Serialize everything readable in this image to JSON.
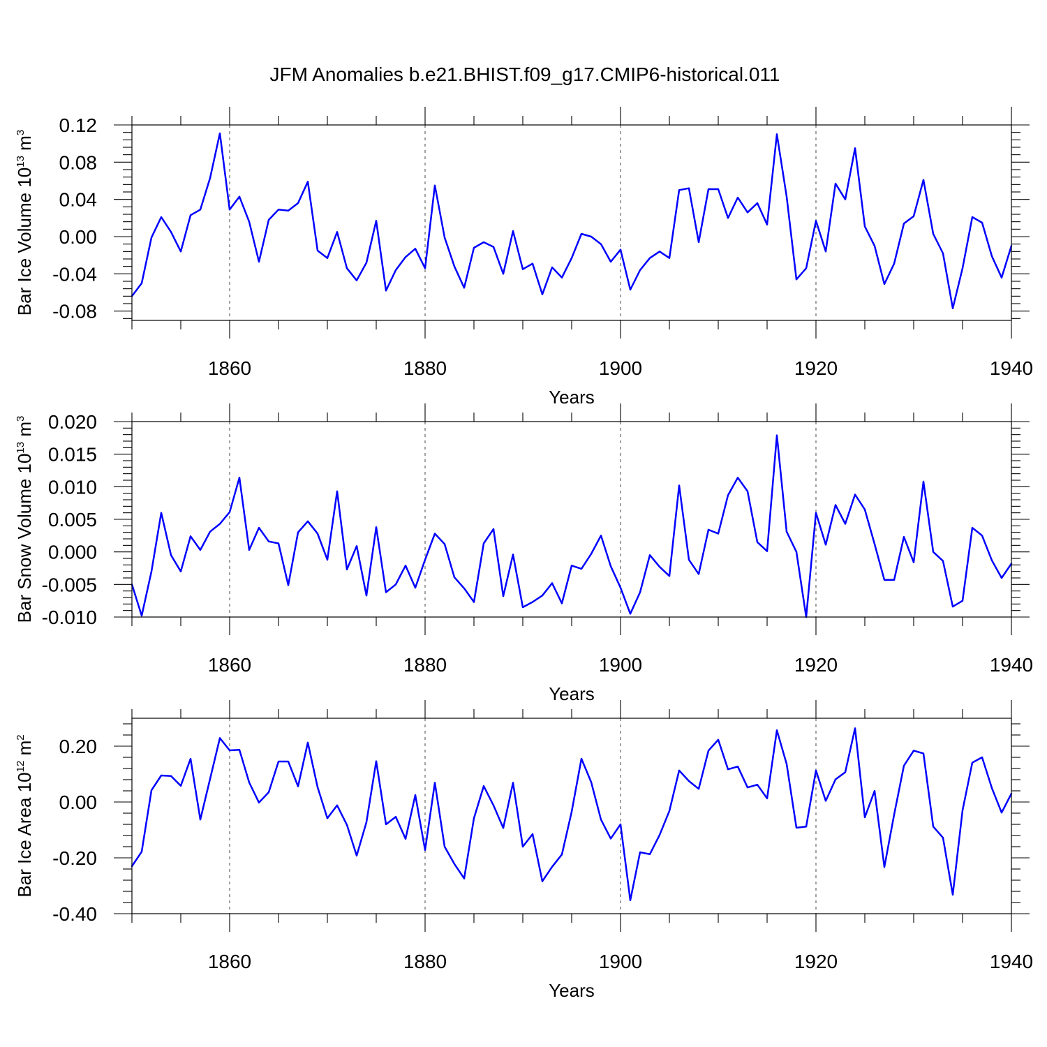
{
  "title": "JFM Anomalies b.e21.BHIST.f09_g17.CMIP6-historical.011",
  "colors": {
    "line": "#0000ff",
    "axis": "#000000",
    "grid": "#444444"
  },
  "chart_data": [
    {
      "type": "line",
      "ylabel": {
        "text": "Bar Ice Volume 10",
        "sup1": "13",
        "unit": " m",
        "sup2": "3"
      },
      "xlabel": "Years",
      "xlim": [
        1850,
        1940
      ],
      "ylim": [
        -0.09,
        0.12
      ],
      "xticks": [
        1860,
        1880,
        1900,
        1920,
        1940
      ],
      "yticks": [
        -0.08,
        -0.04,
        0.0,
        0.04,
        0.08,
        0.12
      ],
      "ytick_labels": [
        "-0.08",
        "-0.04",
        "0.00",
        "0.04",
        "0.08",
        "0.12"
      ],
      "x_start": 1850,
      "values": [
        -0.064,
        -0.05,
        -0.001,
        0.021,
        0.005,
        -0.016,
        0.023,
        0.029,
        0.063,
        0.111,
        0.029,
        0.043,
        0.016,
        -0.027,
        0.018,
        0.029,
        0.028,
        0.036,
        0.059,
        -0.015,
        -0.023,
        0.005,
        -0.034,
        -0.047,
        -0.028,
        0.017,
        -0.058,
        -0.036,
        -0.022,
        -0.013,
        -0.034,
        0.055,
        -0.001,
        -0.032,
        -0.055,
        -0.012,
        -0.006,
        -0.011,
        -0.04,
        0.006,
        -0.035,
        -0.029,
        -0.062,
        -0.033,
        -0.044,
        -0.023,
        0.003,
        0.0,
        -0.008,
        -0.027,
        -0.014,
        -0.057,
        -0.036,
        -0.023,
        -0.016,
        -0.023,
        0.05,
        0.052,
        -0.006,
        0.051,
        0.051,
        0.02,
        0.042,
        0.026,
        0.036,
        0.013,
        0.11,
        0.043,
        -0.046,
        -0.034,
        0.017,
        -0.016,
        0.057,
        0.04,
        0.095,
        0.011,
        -0.01,
        -0.051,
        -0.029,
        0.014,
        0.022,
        0.061,
        0.003,
        -0.018,
        -0.077,
        -0.034,
        0.021,
        0.015,
        -0.021,
        -0.044,
        -0.01
      ]
    },
    {
      "type": "line",
      "ylabel": {
        "text": "Bar Snow Volume 10",
        "sup1": "13",
        "unit": " m",
        "sup2": "3"
      },
      "xlabel": "Years",
      "xlim": [
        1850,
        1940
      ],
      "ylim": [
        -0.01,
        0.02
      ],
      "xticks": [
        1860,
        1880,
        1900,
        1920,
        1940
      ],
      "yticks": [
        -0.01,
        -0.005,
        0.0,
        0.005,
        0.01,
        0.015,
        0.02
      ],
      "ytick_labels": [
        "-0.010",
        "-0.005",
        "0.000",
        "0.005",
        "0.010",
        "0.015",
        "0.020"
      ],
      "x_start": 1850,
      "values": [
        -0.005,
        -0.0098,
        -0.003,
        0.006,
        -0.0005,
        -0.003,
        0.0024,
        0.0003,
        0.0031,
        0.0043,
        0.0061,
        0.0114,
        0.0003,
        0.0037,
        0.0016,
        0.0013,
        -0.0051,
        0.003,
        0.0047,
        0.0028,
        -0.0012,
        0.0093,
        -0.0027,
        0.0009,
        -0.0067,
        0.0038,
        -0.0062,
        -0.005,
        -0.0021,
        -0.0055,
        -0.0012,
        0.0028,
        0.0012,
        -0.0039,
        -0.0056,
        -0.0077,
        0.0013,
        0.0035,
        -0.0068,
        -0.0004,
        -0.0085,
        -0.0077,
        -0.0067,
        -0.0048,
        -0.0079,
        -0.0021,
        -0.0026,
        -0.0003,
        0.0025,
        -0.0022,
        -0.0055,
        -0.0095,
        -0.0062,
        -0.0005,
        -0.0023,
        -0.0037,
        0.0102,
        -0.0012,
        -0.0034,
        0.0034,
        0.0028,
        0.0087,
        0.0114,
        0.0093,
        0.0015,
        0.0001,
        0.0179,
        0.0031,
        0.0,
        -0.01,
        0.006,
        0.0011,
        0.0072,
        0.0043,
        0.0088,
        0.0065,
        0.0012,
        -0.0043,
        -0.0043,
        0.0023,
        -0.0016,
        0.0108,
        0.0,
        -0.0014,
        -0.0084,
        -0.0075,
        0.0037,
        0.0025,
        -0.0013,
        -0.004,
        -0.0018
      ]
    },
    {
      "type": "line",
      "ylabel": {
        "text": "Bar Ice Area 10",
        "sup1": "12",
        "unit": " m",
        "sup2": "2"
      },
      "xlabel": "Years",
      "xlim": [
        1850,
        1940
      ],
      "ylim": [
        -0.4,
        0.3
      ],
      "xticks": [
        1860,
        1880,
        1900,
        1920,
        1940
      ],
      "yticks": [
        -0.4,
        -0.2,
        0.0,
        0.2
      ],
      "ytick_labels": [
        "-0.40",
        "-0.20",
        "0.00",
        "0.20"
      ],
      "x_start": 1850,
      "values": [
        -0.23,
        -0.178,
        0.042,
        0.095,
        0.093,
        0.058,
        0.155,
        -0.063,
        0.083,
        0.229,
        0.185,
        0.187,
        0.07,
        -0.002,
        0.035,
        0.145,
        0.145,
        0.056,
        0.213,
        0.053,
        -0.058,
        -0.012,
        -0.082,
        -0.192,
        -0.072,
        0.146,
        -0.08,
        -0.053,
        -0.132,
        0.025,
        -0.172,
        0.069,
        -0.16,
        -0.222,
        -0.274,
        -0.058,
        0.057,
        -0.012,
        -0.093,
        0.069,
        -0.16,
        -0.115,
        -0.284,
        -0.232,
        -0.188,
        -0.035,
        0.155,
        0.071,
        -0.063,
        -0.131,
        -0.08,
        -0.352,
        -0.18,
        -0.187,
        -0.118,
        -0.032,
        0.113,
        0.075,
        0.047,
        0.184,
        0.223,
        0.117,
        0.127,
        0.052,
        0.062,
        0.013,
        0.257,
        0.136,
        -0.092,
        -0.088,
        0.113,
        0.004,
        0.081,
        0.107,
        0.264,
        -0.055,
        0.04,
        -0.233,
        -0.045,
        0.13,
        0.184,
        0.174,
        -0.088,
        -0.128,
        -0.332,
        -0.03,
        0.141,
        0.16,
        0.05,
        -0.038,
        0.03
      ]
    }
  ]
}
